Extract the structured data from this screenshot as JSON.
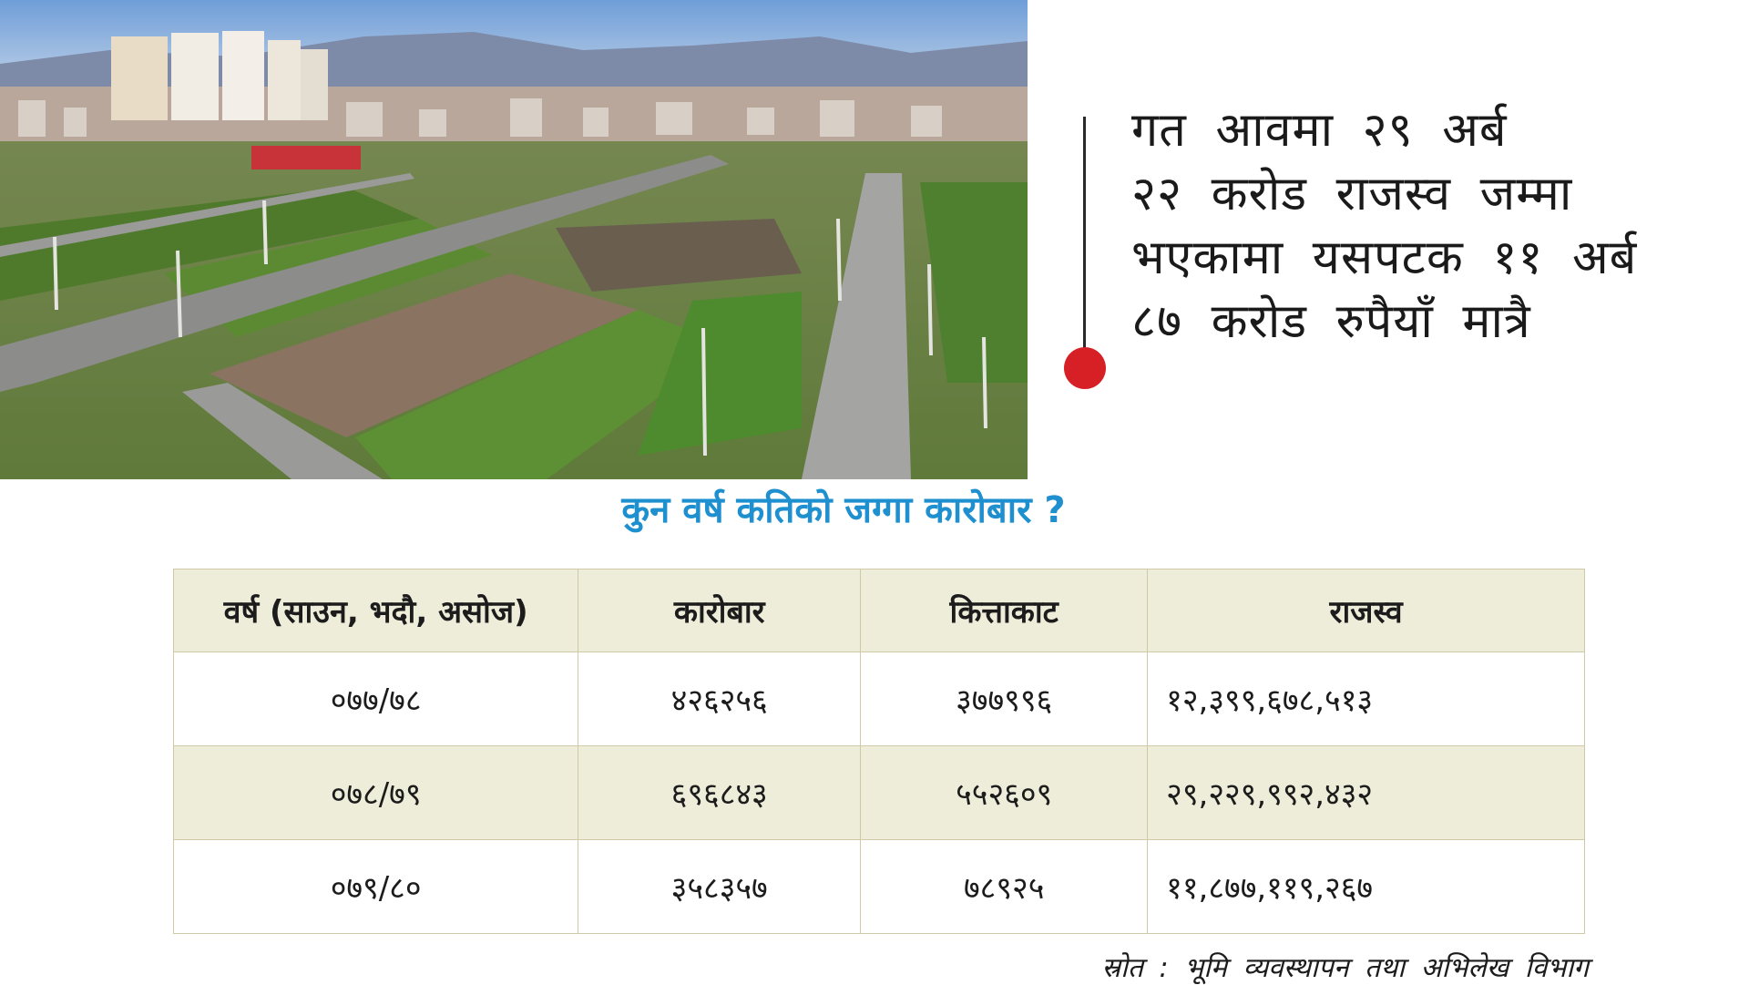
{
  "headline": {
    "lines": [
      "गत आवमा २९ अर्ब",
      "२२ करोड राजस्व जम्मा",
      "भएकामा यसपटक ११ अर्ब",
      "८७ करोड रुपैयाँ मात्रै"
    ]
  },
  "table": {
    "title": "कुन वर्ष कतिको जग्गा कारोबार ?",
    "headers": [
      "वर्ष (साउन, भदौ, असोज)",
      "कारोबार",
      "कित्ताकाट",
      "राजस्व"
    ],
    "rows": [
      [
        "०७७/७८",
        "४२६२५६",
        "३७७९९६",
        "१२,३९९,६७८,५१३"
      ],
      [
        "०७८/७९",
        "६९६८४३",
        "५५२६०९",
        "२९,२२९,९९२,४३२"
      ],
      [
        "०७९/८०",
        "३५८३५७",
        "७८९२५",
        "११,८७७,११९,२६७"
      ]
    ]
  },
  "source": "स्रोत : भूमि व्यवस्थापन तथा अभिलेख विभाग",
  "colors": {
    "title_blue": "#1e8fcf",
    "accent_red": "#d71f26",
    "table_header_bg": "#eeedd9",
    "table_border": "#cfc9a8"
  }
}
